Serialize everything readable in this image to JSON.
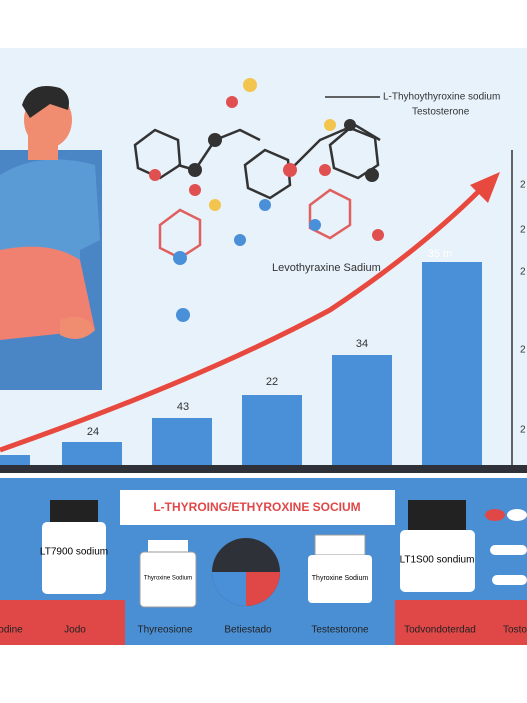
{
  "header": {
    "legend": [
      "L-Thyhoythyroxine sodium",
      "Testosterone"
    ],
    "molecule_label": "Levothyraxine Sadium"
  },
  "bars": {
    "labels": [
      "24",
      "43",
      "22",
      "34",
      "35 m"
    ],
    "axis_ticks": [
      "2",
      "2",
      "2",
      "2",
      "2"
    ]
  },
  "banner": {
    "title": "L-THYROING/ETHYROXINE SOCIUM"
  },
  "products": {
    "bottle_1": "LT7900 sodium",
    "bottle_2": "Thyroxine Sodium",
    "bottle_3": "Thyroxine Sodium",
    "bottle_4": "LT1S00 sondium"
  },
  "footer": {
    "labels": [
      "Jodine",
      "Jodo",
      "Thyreosione",
      "Betiestado",
      "Testestorone",
      "Todvondoterdad",
      "Tosto"
    ]
  }
}
